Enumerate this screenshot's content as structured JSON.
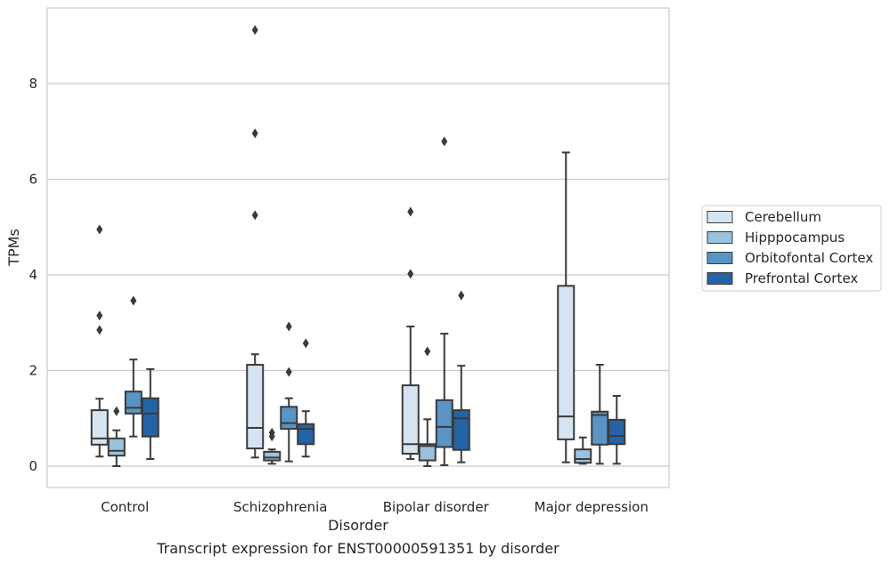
{
  "chart_data": {
    "type": "boxplot",
    "title": "",
    "caption": "Transcript expression for ENST00000591351 by disorder",
    "xlabel": "Disorder",
    "ylabel": "TPMs",
    "ylim": [
      -0.45,
      9.6
    ],
    "yticks": [
      "0",
      "2",
      "4",
      "6",
      "8"
    ],
    "grid": "horizontal",
    "legend_position": "right",
    "categories": [
      "Control",
      "Schizophrenia",
      "Bipolar disorder",
      "Major depression"
    ],
    "series": [
      {
        "name": "Cerebellum",
        "color": "#d6e4f2",
        "boxes": [
          {
            "whislo": 0.2,
            "q1": 0.45,
            "med": 0.58,
            "q3": 1.17,
            "whishi": 1.41,
            "fliers": [
              4.95,
              3.15,
              2.85
            ]
          },
          {
            "whislo": 0.18,
            "q1": 0.37,
            "med": 0.8,
            "q3": 2.12,
            "whishi": 2.34,
            "fliers": [
              9.12,
              6.96,
              5.25
            ]
          },
          {
            "whislo": 0.15,
            "q1": 0.26,
            "med": 0.46,
            "q3": 1.69,
            "whishi": 2.92,
            "fliers": [
              5.32,
              4.02
            ]
          },
          {
            "whislo": 0.08,
            "q1": 0.56,
            "med": 1.04,
            "q3": 3.77,
            "whishi": 6.56,
            "fliers": []
          }
        ]
      },
      {
        "name": "Hipppocampus",
        "color": "#9ac2de",
        "boxes": [
          {
            "whislo": 0.0,
            "q1": 0.22,
            "med": 0.32,
            "q3": 0.58,
            "whishi": 0.75,
            "fliers": [
              1.15
            ]
          },
          {
            "whislo": 0.05,
            "q1": 0.12,
            "med": 0.18,
            "q3": 0.3,
            "whishi": 0.35,
            "fliers": [
              0.7,
              0.62
            ]
          },
          {
            "whislo": 0.0,
            "q1": 0.12,
            "med": 0.42,
            "q3": 0.46,
            "whishi": 0.98,
            "fliers": [
              2.4
            ]
          },
          {
            "whislo": 0.05,
            "q1": 0.07,
            "med": 0.15,
            "q3": 0.35,
            "whishi": 0.6,
            "fliers": []
          }
        ]
      },
      {
        "name": "Orbitofontal Cortex",
        "color": "#5894c4",
        "boxes": [
          {
            "whislo": 0.62,
            "q1": 1.1,
            "med": 1.22,
            "q3": 1.56,
            "whishi": 2.23,
            "fliers": [
              3.46
            ]
          },
          {
            "whislo": 0.1,
            "q1": 0.78,
            "med": 0.9,
            "q3": 1.24,
            "whishi": 1.42,
            "fliers": [
              2.92,
              1.97
            ]
          },
          {
            "whislo": 0.02,
            "q1": 0.4,
            "med": 0.82,
            "q3": 1.38,
            "whishi": 2.77,
            "fliers": [
              6.79
            ]
          },
          {
            "whislo": 0.05,
            "q1": 0.45,
            "med": 1.07,
            "q3": 1.14,
            "whishi": 2.12,
            "fliers": []
          }
        ]
      },
      {
        "name": "Prefrontal Cortex",
        "color": "#2463a5",
        "boxes": [
          {
            "whislo": 0.15,
            "q1": 0.62,
            "med": 1.1,
            "q3": 1.42,
            "whishi": 2.03,
            "fliers": []
          },
          {
            "whislo": 0.2,
            "q1": 0.46,
            "med": 0.78,
            "q3": 0.88,
            "whishi": 1.15,
            "fliers": [
              2.57
            ]
          },
          {
            "whislo": 0.08,
            "q1": 0.34,
            "med": 1.0,
            "q3": 1.17,
            "whishi": 2.1,
            "fliers": [
              3.57
            ]
          },
          {
            "whislo": 0.05,
            "q1": 0.46,
            "med": 0.63,
            "q3": 0.97,
            "whishi": 1.47,
            "fliers": []
          }
        ]
      }
    ]
  }
}
